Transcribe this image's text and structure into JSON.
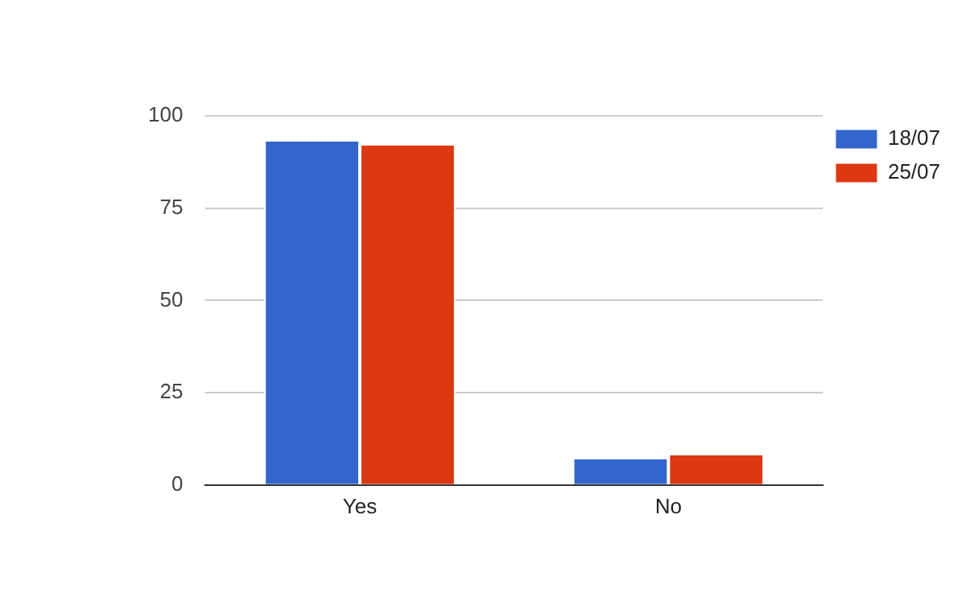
{
  "chart_data": {
    "type": "bar",
    "categories": [
      "Yes",
      "No"
    ],
    "series": [
      {
        "name": "18/07",
        "color": "#3366cc",
        "values": [
          93,
          7
        ]
      },
      {
        "name": "25/07",
        "color": "#dc3912",
        "values": [
          92,
          8
        ]
      }
    ],
    "ylim": [
      0,
      100
    ],
    "yticks": [
      0,
      25,
      50,
      75,
      100
    ],
    "grid": "y",
    "legend": "top right"
  }
}
